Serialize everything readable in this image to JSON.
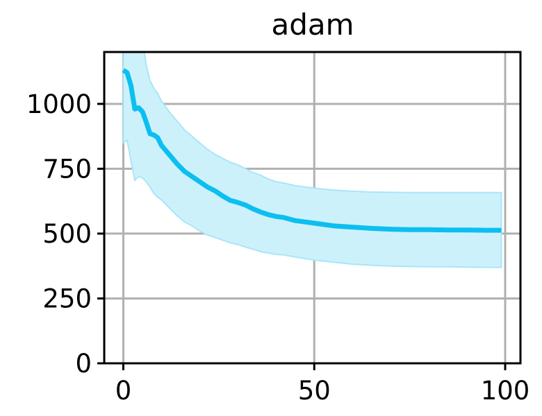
{
  "chart_data": {
    "type": "line",
    "title": "adam",
    "xlabel": "",
    "ylabel": "",
    "xlim": [
      -5,
      104
    ],
    "ylim": [
      0,
      1200
    ],
    "xticks": [
      0,
      50,
      100
    ],
    "yticks": [
      0,
      250,
      500,
      750,
      1000
    ],
    "grid": true,
    "colors": {
      "line": "#0cbff0",
      "band": "#cdf1fb",
      "band_edge": "#a8e6f8"
    },
    "series": [
      {
        "x": [
          0,
          1,
          2,
          3,
          4,
          5,
          6,
          7,
          8,
          9,
          10,
          12,
          14,
          16,
          18,
          20,
          22,
          24,
          26,
          28,
          30,
          32,
          34,
          36,
          38,
          40,
          42,
          45,
          50,
          55,
          60,
          65,
          70,
          75,
          80,
          85,
          90,
          95,
          99
        ],
        "y": [
          1130,
          1120,
          1070,
          980,
          985,
          970,
          930,
          885,
          880,
          870,
          840,
          805,
          770,
          740,
          720,
          700,
          680,
          665,
          645,
          628,
          620,
          610,
          595,
          583,
          573,
          566,
          562,
          550,
          540,
          530,
          525,
          520,
          517,
          515,
          515,
          514,
          514,
          513,
          513
        ],
        "upper": [
          1250,
          1250,
          1250,
          1250,
          1250,
          1250,
          1150,
          1090,
          1060,
          1040,
          1010,
          970,
          935,
          900,
          875,
          850,
          825,
          805,
          790,
          775,
          765,
          750,
          735,
          725,
          710,
          700,
          695,
          685,
          675,
          668,
          663,
          660,
          659,
          658,
          658,
          658,
          658,
          658,
          658
        ],
        "lower": [
          850,
          860,
          780,
          705,
          720,
          715,
          700,
          680,
          655,
          640,
          630,
          600,
          570,
          545,
          530,
          510,
          495,
          485,
          475,
          465,
          458,
          448,
          440,
          430,
          425,
          420,
          418,
          410,
          398,
          390,
          382,
          378,
          375,
          373,
          372,
          372,
          371,
          370,
          370
        ]
      }
    ]
  }
}
